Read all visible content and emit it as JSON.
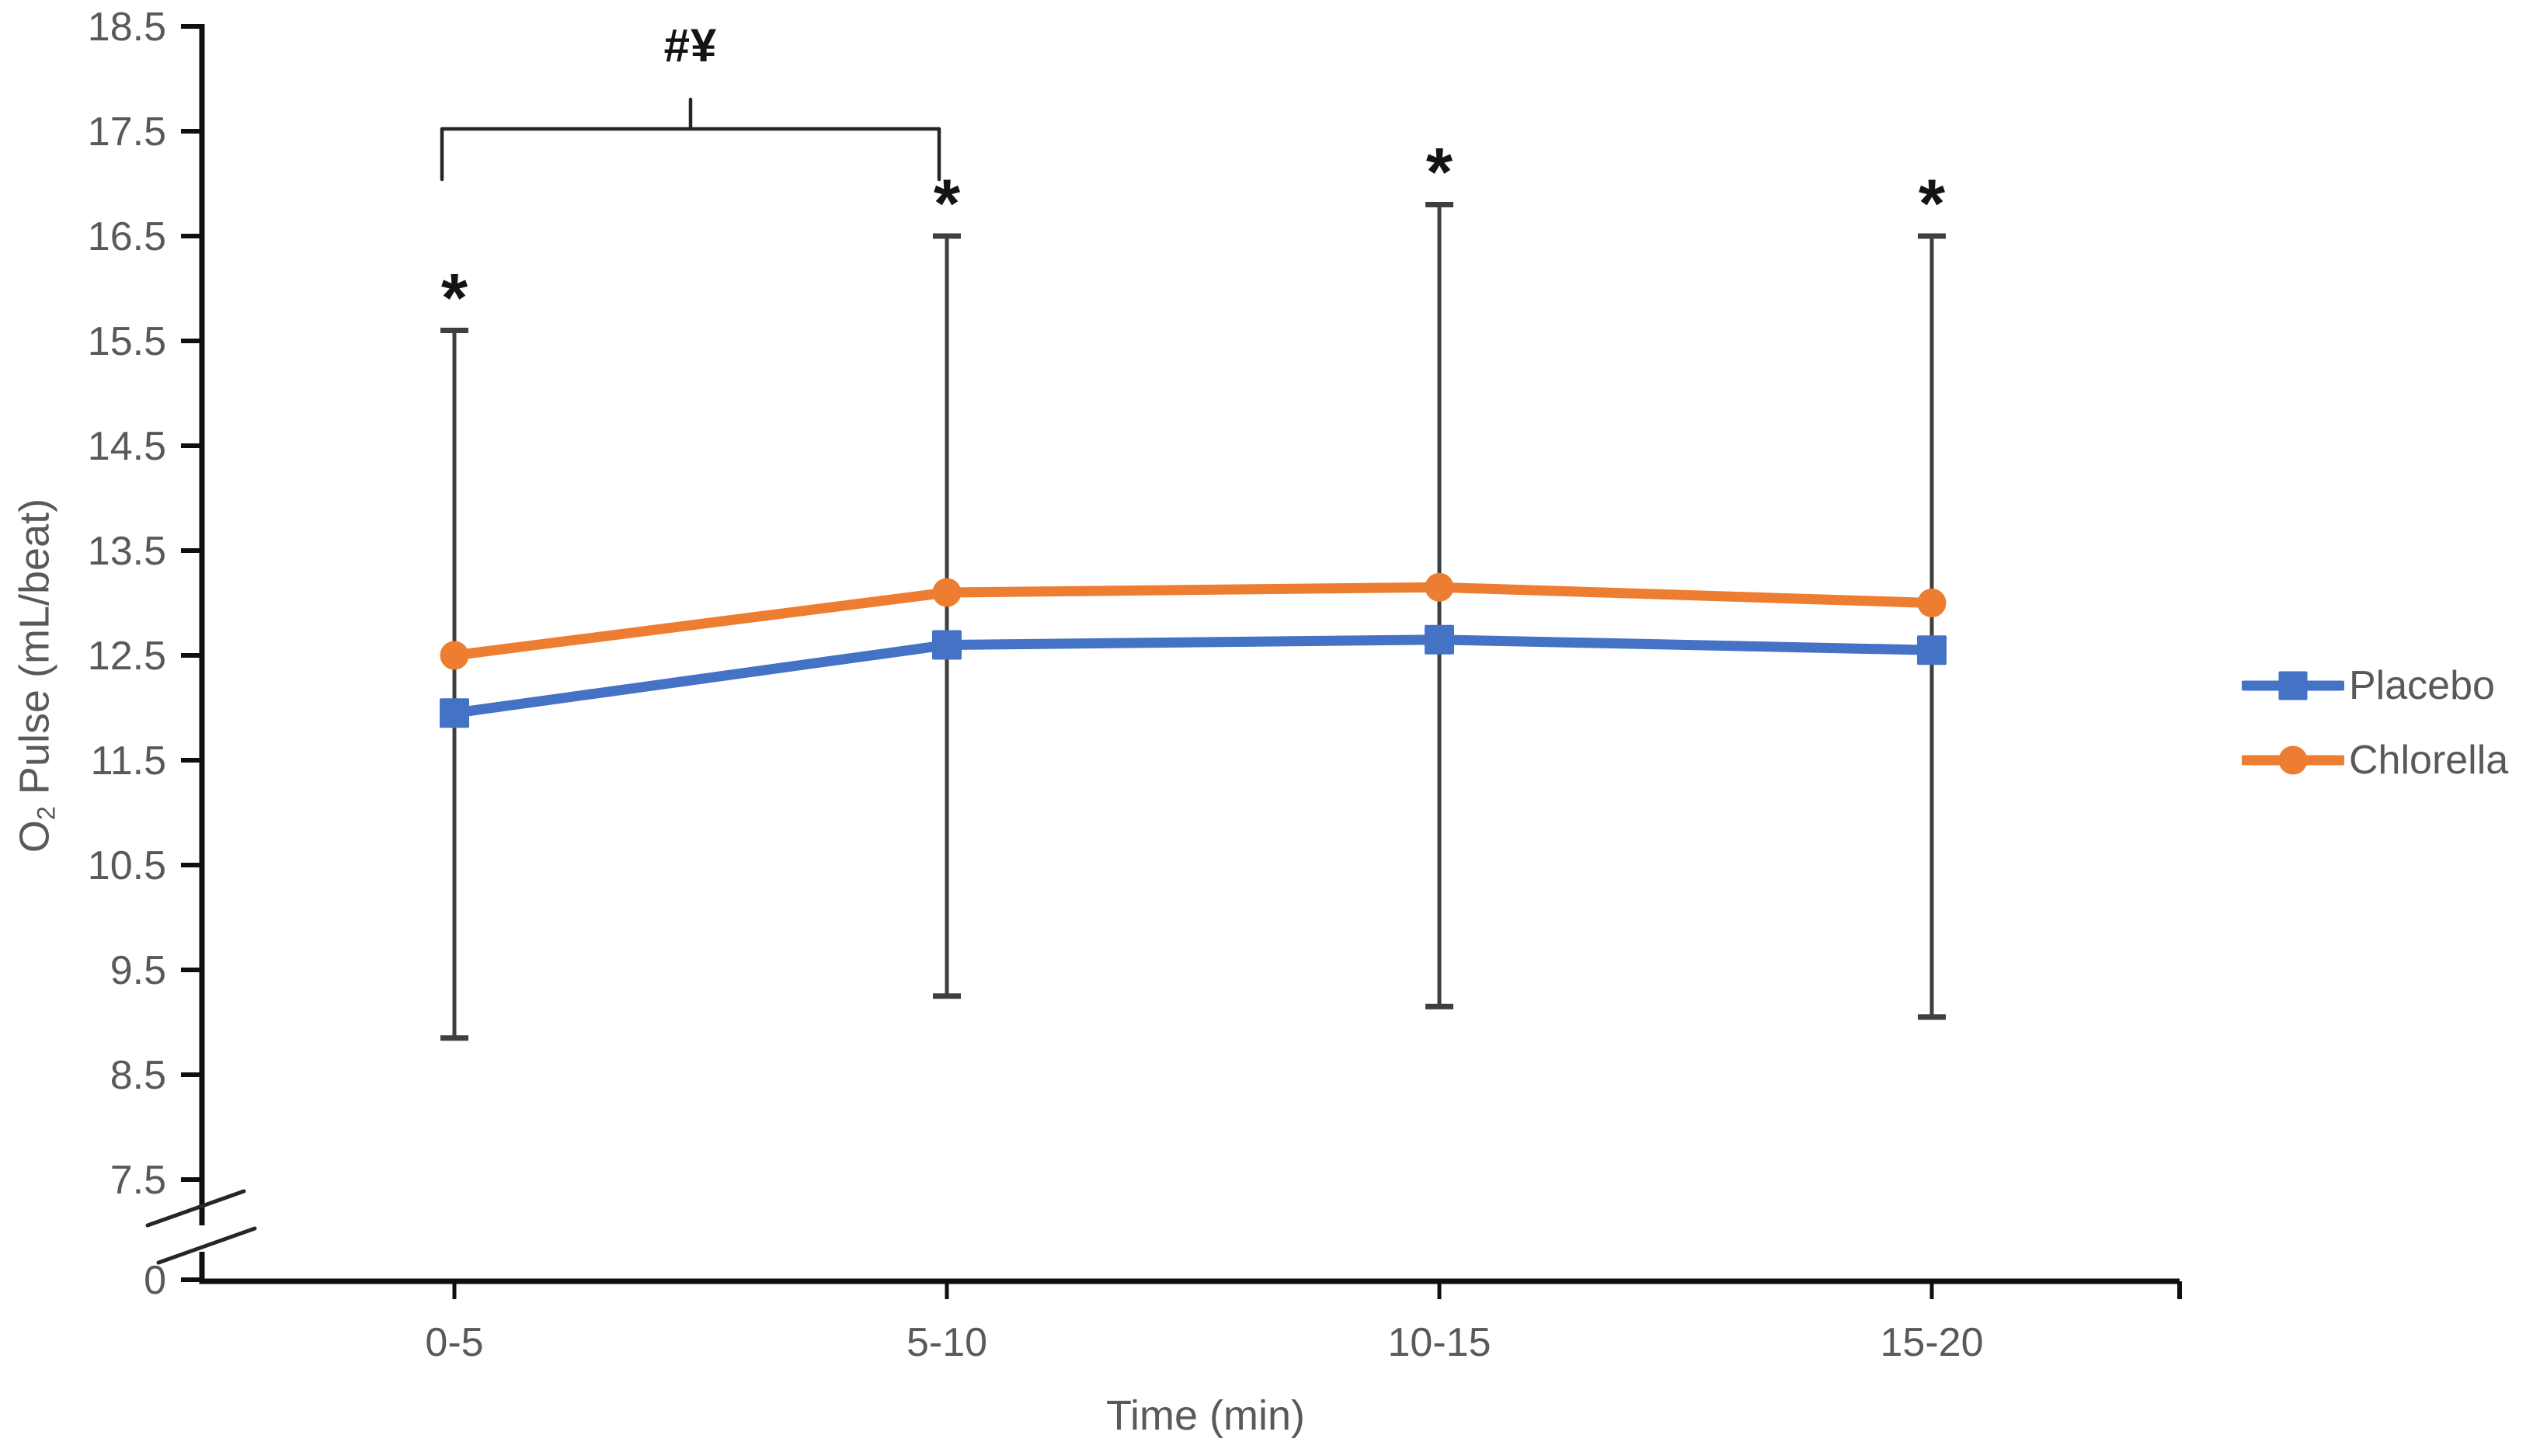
{
  "chart_data": {
    "type": "line",
    "title": "",
    "xlabel": "Time (min)",
    "ylabel": "O2 Pulse (mL/beat)",
    "ylabel_parts": {
      "pre": "O",
      "sub": "2",
      "post": " Pulse (mL/beat)"
    },
    "categories": [
      "0-5",
      "5-10",
      "10-15",
      "15-20"
    ],
    "series": [
      {
        "name": "Placebo",
        "marker": "square",
        "color": "#4472C4",
        "values": [
          11.95,
          12.6,
          12.65,
          12.55
        ]
      },
      {
        "name": "Chlorella",
        "marker": "circle",
        "color": "#ED7D31",
        "values": [
          12.5,
          13.1,
          13.15,
          13.0
        ]
      }
    ],
    "error_bars": {
      "color": "#3F3F3F",
      "top": [
        15.6,
        16.5,
        16.8,
        16.5
      ],
      "bottom": [
        8.85,
        9.25,
        9.15,
        9.05
      ]
    },
    "yticks": [
      "18.5",
      "17.5",
      "16.5",
      "15.5",
      "14.5",
      "13.5",
      "12.5",
      "11.5",
      "10.5",
      "9.5",
      "8.5",
      "7.5"
    ],
    "y_origin_label": "0",
    "ylim": [
      7.5,
      18.5
    ],
    "y_axis_break": true,
    "grid": false,
    "legend_position": "right",
    "annotations": {
      "significance_symbol": "*",
      "significant_categories": [
        "0-5",
        "5-10",
        "10-15",
        "15-20"
      ],
      "bracket_label": "#¥",
      "bracket_span": [
        "0-5",
        "5-10"
      ]
    }
  }
}
